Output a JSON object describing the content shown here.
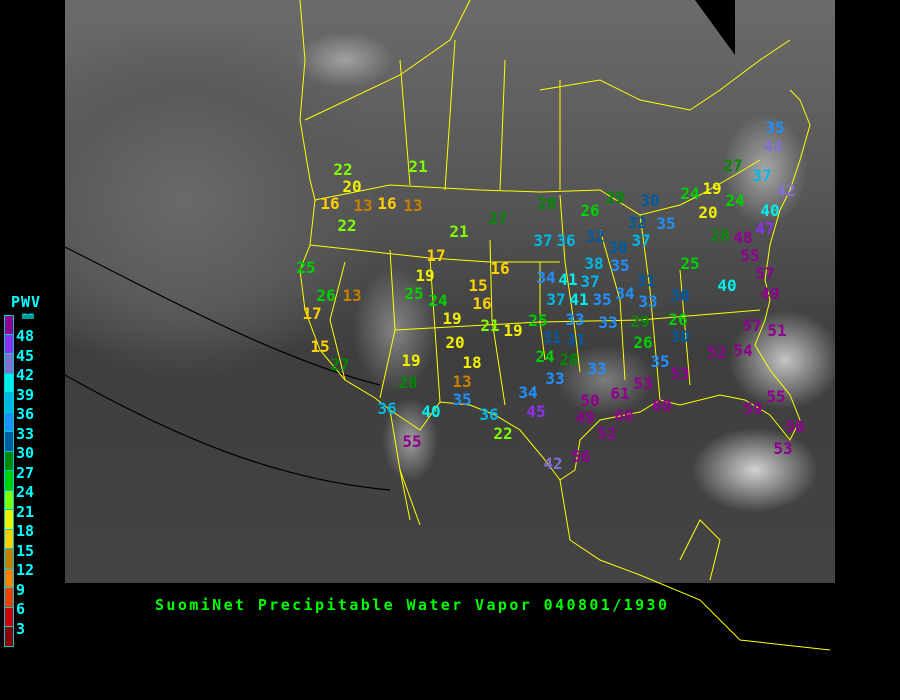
{
  "title": "SuomiNet Precipitable Water Vapor 040801/1930",
  "legend": {
    "title": "PWV",
    "unit": "mm",
    "labels": [
      "48",
      "45",
      "42",
      "39",
      "36",
      "33",
      "30",
      "27",
      "24",
      "21",
      "18",
      "15",
      "12",
      "9",
      "6",
      "3"
    ],
    "colors": [
      "#900090",
      "#9030f0",
      "#8070d0",
      "#00eeee",
      "#00b8e8",
      "#2090ff",
      "#005aa0",
      "#008800",
      "#00d000",
      "#80ff00",
      "#f0f000",
      "#ffd000",
      "#c88000",
      "#ff8000",
      "#f04000",
      "#d00000",
      "#8b0000"
    ]
  },
  "colors": {
    "boundary": "#ffff00",
    "title": "#00ff00",
    "legend_text": "#00ffff"
  },
  "stations": [
    "35",
    "44",
    "27",
    "37",
    "42",
    "19",
    "24",
    "20",
    "40",
    "47",
    "28",
    "48",
    "55",
    "57",
    "49",
    "40",
    "25",
    "30",
    "22",
    "20",
    "16",
    "13",
    "16",
    "13",
    "22",
    "21",
    "21",
    "27",
    "28",
    "26",
    "29",
    "30",
    "24",
    "37",
    "36",
    "32",
    "30",
    "37",
    "35",
    "32",
    "38",
    "35",
    "34",
    "41",
    "37",
    "31",
    "34",
    "33",
    "35",
    "41",
    "37",
    "33",
    "33",
    "29",
    "26",
    "25",
    "25",
    "26",
    "13",
    "17",
    "15",
    "17",
    "19",
    "25",
    "24",
    "15",
    "16",
    "16",
    "19",
    "21",
    "19",
    "20",
    "31",
    "31",
    "24",
    "28",
    "33",
    "33",
    "26",
    "30",
    "35",
    "52",
    "54",
    "57",
    "51",
    "53",
    "53",
    "61",
    "50",
    "49",
    "52",
    "60",
    "60",
    "59",
    "55",
    "50",
    "53",
    "27",
    "19",
    "28",
    "18",
    "13",
    "35",
    "36",
    "40",
    "36",
    "22",
    "34",
    "45",
    "55",
    "42",
    "56"
  ]
}
